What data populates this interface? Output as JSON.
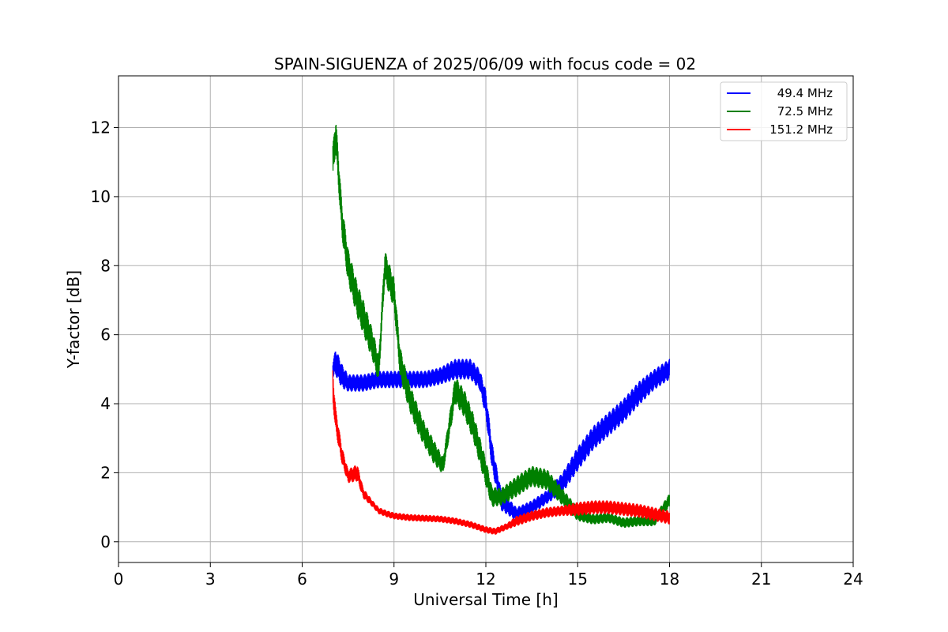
{
  "chart_data": {
    "type": "line",
    "title": "SPAIN-SIGUENZA of 2025/06/09 with focus code = 02",
    "xlabel": "Universal Time [h]",
    "ylabel": "Y-factor [dB]",
    "xlim": [
      0,
      24
    ],
    "ylim": [
      -0.6,
      13.5
    ],
    "xticks": [
      0,
      3,
      6,
      9,
      12,
      15,
      18,
      21,
      24
    ],
    "yticks": [
      0,
      2,
      4,
      6,
      8,
      10,
      12
    ],
    "grid": true,
    "legend_position": "top-right",
    "series": [
      {
        "name": "49.4 MHz",
        "color": "#0000ff",
        "x": [
          7.0,
          7.1,
          7.3,
          7.5,
          8.0,
          8.5,
          9.0,
          9.5,
          10.0,
          10.5,
          11.0,
          11.5,
          11.8,
          12.0,
          12.2,
          12.5,
          13.0,
          13.5,
          14.0,
          14.5,
          15.0,
          15.5,
          16.0,
          16.5,
          17.0,
          17.5,
          18.0
        ],
        "values": [
          5.0,
          5.2,
          4.8,
          4.6,
          4.6,
          4.7,
          4.7,
          4.7,
          4.7,
          4.8,
          5.0,
          5.0,
          4.7,
          4.0,
          2.5,
          1.2,
          0.8,
          1.0,
          1.3,
          1.7,
          2.4,
          3.0,
          3.4,
          3.8,
          4.3,
          4.7,
          5.0
        ],
        "band": [
          0.5,
          0.8,
          0.7,
          0.5,
          0.5,
          0.5,
          0.5,
          0.5,
          0.5,
          0.5,
          0.6,
          0.6,
          0.6,
          0.8,
          0.8,
          0.6,
          0.4,
          0.4,
          0.4,
          0.6,
          0.7,
          0.7,
          0.7,
          0.7,
          0.7,
          0.6,
          0.6
        ]
      },
      {
        "name": "72.5 MHz",
        "color": "#008000",
        "x": [
          7.0,
          7.1,
          7.3,
          7.5,
          7.8,
          8.0,
          8.3,
          8.5,
          8.7,
          9.0,
          9.2,
          9.5,
          9.8,
          10.0,
          10.3,
          10.6,
          11.0,
          11.3,
          11.6,
          12.0,
          12.2,
          12.5,
          13.0,
          13.5,
          14.0,
          14.5,
          15.0,
          15.5,
          16.0,
          16.5,
          17.0,
          17.5,
          18.0
        ],
        "values": [
          11.0,
          11.8,
          9.3,
          8.0,
          7.0,
          6.5,
          5.7,
          5.0,
          8.0,
          7.2,
          5.2,
          4.2,
          3.5,
          3.1,
          2.6,
          2.2,
          4.4,
          4.0,
          3.3,
          2.0,
          1.3,
          1.3,
          1.6,
          1.9,
          1.8,
          1.3,
          0.8,
          0.65,
          0.7,
          0.55,
          0.6,
          0.6,
          1.2
        ],
        "band": [
          1.0,
          1.0,
          1.0,
          1.0,
          1.0,
          1.0,
          0.9,
          0.8,
          0.9,
          0.9,
          0.9,
          0.8,
          0.8,
          0.7,
          0.7,
          0.5,
          0.8,
          0.8,
          0.8,
          0.8,
          0.6,
          0.5,
          0.6,
          0.6,
          0.6,
          0.5,
          0.4,
          0.3,
          0.3,
          0.3,
          0.3,
          0.3,
          0.4
        ]
      },
      {
        "name": "151.2 MHz",
        "color": "#ff0000",
        "x": [
          7.0,
          7.1,
          7.3,
          7.5,
          7.8,
          8.0,
          8.3,
          8.5,
          8.8,
          9.0,
          9.5,
          10.0,
          10.5,
          11.0,
          11.5,
          12.0,
          12.3,
          12.7,
          13.0,
          13.5,
          14.0,
          14.5,
          15.0,
          15.5,
          16.0,
          16.5,
          17.0,
          17.5,
          18.0
        ],
        "values": [
          4.5,
          3.5,
          2.5,
          1.9,
          2.0,
          1.4,
          1.1,
          0.9,
          0.8,
          0.75,
          0.7,
          0.68,
          0.66,
          0.6,
          0.5,
          0.35,
          0.3,
          0.45,
          0.6,
          0.75,
          0.85,
          0.9,
          0.95,
          1.0,
          1.0,
          0.95,
          0.9,
          0.8,
          0.7
        ],
        "band": [
          1.0,
          0.7,
          0.5,
          0.4,
          0.5,
          0.3,
          0.2,
          0.2,
          0.2,
          0.2,
          0.2,
          0.2,
          0.2,
          0.2,
          0.2,
          0.2,
          0.2,
          0.2,
          0.3,
          0.3,
          0.3,
          0.3,
          0.4,
          0.4,
          0.4,
          0.4,
          0.4,
          0.4,
          0.4
        ]
      }
    ]
  }
}
